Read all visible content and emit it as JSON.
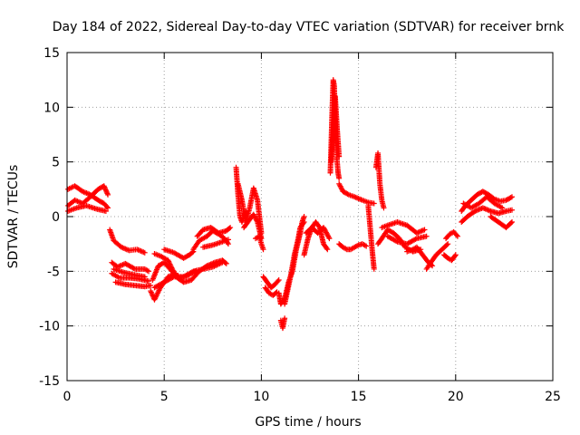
{
  "chart_data": {
    "type": "scatter",
    "title": "Day 184 of 2022, Sidereal Day-to-day VTEC variation (SDTVAR) for receiver brnk",
    "xlabel": "GPS time / hours",
    "ylabel": "SDTVAR / TECUs",
    "xlim": [
      0,
      25
    ],
    "ylim": [
      -15,
      15
    ],
    "xticks": [
      0,
      5,
      10,
      15,
      20,
      25
    ],
    "yticks": [
      -15,
      -10,
      -5,
      0,
      5,
      10,
      15
    ],
    "grid": true,
    "marker": "plus",
    "color": "#ff0000",
    "series": [
      {
        "name": "SDTVAR",
        "tracks": [
          {
            "x": [
              0.05,
              0.4,
              0.8,
              1.2,
              1.6,
              1.9,
              2.1
            ],
            "y": [
              1.0,
              1.5,
              1.2,
              1.8,
              2.5,
              2.8,
              2.0
            ]
          },
          {
            "x": [
              0.05,
              0.4,
              0.8,
              1.2,
              1.6,
              1.9,
              2.1
            ],
            "y": [
              2.5,
              2.8,
              2.3,
              2.0,
              1.5,
              1.2,
              0.8
            ]
          },
          {
            "x": [
              0.05,
              0.5,
              1.0,
              1.5,
              2.0
            ],
            "y": [
              0.5,
              0.8,
              1.0,
              0.7,
              0.5
            ]
          },
          {
            "x": [
              2.2,
              2.4,
              2.8,
              3.2,
              3.6,
              4.0
            ],
            "y": [
              -1.2,
              -2.2,
              -2.8,
              -3.1,
              -3.0,
              -3.3
            ]
          },
          {
            "x": [
              2.3,
              2.6,
              3.0,
              3.5,
              4.0,
              4.2
            ],
            "y": [
              -4.2,
              -4.6,
              -4.3,
              -4.8,
              -4.8,
              -5.0
            ]
          },
          {
            "x": [
              2.3,
              2.7,
              3.2,
              3.7,
              4.2
            ],
            "y": [
              -5.2,
              -5.6,
              -5.6,
              -5.7,
              -5.9
            ]
          },
          {
            "x": [
              2.4,
              2.9,
              3.4,
              4.0
            ],
            "y": [
              -4.8,
              -5.1,
              -5.3,
              -5.5
            ]
          },
          {
            "x": [
              2.5,
              3.0,
              3.5,
              4.0,
              4.3
            ],
            "y": [
              -6.0,
              -6.2,
              -6.3,
              -6.4,
              -6.3
            ]
          },
          {
            "x": [
              4.3,
              4.5,
              4.8,
              5.2,
              5.6
            ],
            "y": [
              -6.8,
              -7.6,
              -6.5,
              -5.5,
              -5.2
            ]
          },
          {
            "x": [
              4.4,
              4.7,
              5.0,
              5.4,
              5.8,
              6.2,
              6.6
            ],
            "y": [
              -5.8,
              -4.5,
              -4.2,
              -5.0,
              -5.6,
              -5.4,
              -5.0
            ]
          },
          {
            "x": [
              4.5,
              5.0,
              5.5,
              6.0,
              6.5,
              7.0,
              7.5,
              8.0
            ],
            "y": [
              -6.5,
              -6.0,
              -5.5,
              -5.5,
              -5.0,
              -4.8,
              -4.6,
              -4.2
            ]
          },
          {
            "x": [
              4.5,
              4.8,
              5.2,
              5.6,
              6.0,
              6.4,
              6.8,
              7.2,
              7.6,
              8.0,
              8.2
            ],
            "y": [
              -3.4,
              -3.6,
              -4.0,
              -5.5,
              -6.0,
              -5.8,
              -5.0,
              -4.5,
              -4.2,
              -4.0,
              -4.3
            ]
          },
          {
            "x": [
              5.0,
              5.5,
              6.0,
              6.3,
              6.5
            ],
            "y": [
              -3.0,
              -3.3,
              -3.8,
              -3.5,
              -3.2
            ]
          },
          {
            "x": [
              6.5,
              6.8,
              7.2,
              7.5,
              7.8,
              8.1,
              8.3
            ],
            "y": [
              -3.0,
              -2.2,
              -1.8,
              -1.3,
              -1.6,
              -2.0,
              -2.5
            ]
          },
          {
            "x": [
              6.7,
              7.0,
              7.4,
              7.8,
              8.2,
              8.4
            ],
            "y": [
              -1.8,
              -1.2,
              -1.0,
              -1.5,
              -1.3,
              -1.0
            ]
          },
          {
            "x": [
              7.0,
              7.5,
              8.0,
              8.3
            ],
            "y": [
              -2.8,
              -2.6,
              -2.3,
              -2.1
            ]
          },
          {
            "x": [
              8.7,
              8.8,
              8.9,
              9.0,
              9.1,
              9.2
            ],
            "y": [
              4.5,
              2.0,
              0.0,
              -0.5,
              0.0,
              0.5
            ]
          },
          {
            "x": [
              8.8,
              9.0,
              9.2,
              9.4,
              9.6,
              9.8,
              10.0
            ],
            "y": [
              3.0,
              1.5,
              -0.5,
              0.8,
              2.6,
              1.5,
              -1.5
            ]
          },
          {
            "x": [
              9.1,
              9.3,
              9.6,
              9.8,
              10.0
            ],
            "y": [
              -1.0,
              -0.5,
              0.2,
              -0.5,
              -2.0
            ]
          },
          {
            "x": [
              9.7,
              9.9,
              10.0,
              10.1
            ],
            "y": [
              -2.0,
              -1.8,
              -2.5,
              -3.0
            ]
          },
          {
            "x": [
              10.1,
              10.3,
              10.5,
              10.7,
              10.9
            ],
            "y": [
              -5.5,
              -6.0,
              -6.5,
              -6.2,
              -5.8
            ]
          },
          {
            "x": [
              10.2,
              10.4,
              10.6,
              10.8
            ],
            "y": [
              -6.5,
              -7.0,
              -7.2,
              -6.9
            ]
          },
          {
            "x": [
              10.9,
              11.0,
              11.2,
              11.4,
              11.6,
              11.8,
              12.0,
              12.1,
              12.2
            ],
            "y": [
              -7.0,
              -8.0,
              -7.5,
              -6.0,
              -5.0,
              -3.0,
              -1.5,
              -0.5,
              0.0
            ]
          },
          {
            "x": [
              11.0,
              11.1,
              11.2
            ],
            "y": [
              -9.5,
              -10.2,
              -9.3
            ]
          },
          {
            "x": [
              11.2,
              11.5,
              11.7,
              11.9,
              12.0,
              12.2
            ],
            "y": [
              -8.0,
              -5.5,
              -3.5,
              -2.0,
              -1.0,
              -0.5
            ]
          },
          {
            "x": [
              12.2,
              12.4,
              12.6,
              12.8,
              13.0,
              13.2,
              13.4
            ],
            "y": [
              -3.5,
              -2.0,
              -1.0,
              -0.5,
              -1.0,
              -2.5,
              -3.0
            ]
          },
          {
            "x": [
              12.3,
              12.6,
              12.9,
              13.2,
              13.5
            ],
            "y": [
              -1.5,
              -1.0,
              -1.5,
              -1.0,
              -2.0
            ]
          },
          {
            "x": [
              13.55,
              13.6,
              13.65,
              13.7,
              13.75,
              13.8,
              13.85,
              13.9,
              13.95,
              14.0
            ],
            "y": [
              4.0,
              7.0,
              10.0,
              12.5,
              12.0,
              9.0,
              6.5,
              5.0,
              4.0,
              3.5
            ]
          },
          {
            "x": [
              13.6,
              13.7,
              13.8,
              13.9,
              14.0
            ],
            "y": [
              5.0,
              8.0,
              11.0,
              8.0,
              5.5
            ]
          },
          {
            "x": [
              14.0,
              14.2,
              14.5,
              14.8,
              15.2,
              15.5,
              15.8
            ],
            "y": [
              3.0,
              2.3,
              2.0,
              1.8,
              1.5,
              1.3,
              1.2
            ]
          },
          {
            "x": [
              14.0,
              14.2,
              14.4,
              14.6,
              14.8,
              15.0,
              15.2,
              15.4
            ],
            "y": [
              -2.5,
              -2.8,
              -3.0,
              -3.0,
              -2.8,
              -2.6,
              -2.5,
              -2.7
            ]
          },
          {
            "x": [
              15.5,
              15.6,
              15.7,
              15.8
            ],
            "y": [
              1.0,
              -1.0,
              -3.0,
              -4.8
            ]
          },
          {
            "x": [
              15.9,
              16.0,
              16.1,
              16.2,
              16.3
            ],
            "y": [
              4.5,
              5.8,
              3.0,
              1.5,
              0.8
            ]
          },
          {
            "x": [
              16.0,
              16.2,
              16.5,
              16.8,
              17.1,
              17.4,
              17.8,
              18.2
            ],
            "y": [
              -2.5,
              -2.0,
              -1.2,
              -1.5,
              -2.0,
              -2.8,
              -3.2,
              -3.0
            ]
          },
          {
            "x": [
              16.2,
              16.5,
              17.0,
              17.5,
              18.0,
              18.4
            ],
            "y": [
              -1.0,
              -0.8,
              -0.5,
              -0.8,
              -1.5,
              -1.2
            ]
          },
          {
            "x": [
              16.5,
              17.0,
              17.5,
              18.0,
              18.5
            ],
            "y": [
              -1.8,
              -2.3,
              -2.5,
              -2.0,
              -1.8
            ]
          },
          {
            "x": [
              17.5,
              17.8,
              18.0,
              18.3,
              18.6,
              18.8
            ],
            "y": [
              -3.2,
              -3.0,
              -2.8,
              -3.5,
              -4.2,
              -4.5
            ]
          },
          {
            "x": [
              18.5,
              18.8,
              19.0,
              19.3,
              19.6
            ],
            "y": [
              -4.8,
              -4.0,
              -3.5,
              -3.0,
              -2.5
            ]
          },
          {
            "x": [
              19.4,
              19.6,
              19.8,
              20.0
            ],
            "y": [
              -3.5,
              -3.8,
              -4.0,
              -3.5
            ]
          },
          {
            "x": [
              19.5,
              19.7,
              19.9,
              20.1
            ],
            "y": [
              -2.0,
              -1.6,
              -1.4,
              -1.8
            ]
          },
          {
            "x": [
              20.3,
              20.5,
              20.8,
              21.1,
              21.4,
              21.7,
              22.0,
              22.3,
              22.6,
              22.9
            ],
            "y": [
              0.5,
              1.0,
              1.5,
              2.0,
              2.3,
              2.0,
              1.6,
              1.4,
              1.5,
              1.8
            ]
          },
          {
            "x": [
              20.3,
              20.6,
              21.0,
              21.4,
              21.8,
              22.2,
              22.6,
              22.9
            ],
            "y": [
              -0.5,
              0.0,
              0.5,
              0.8,
              0.5,
              0.3,
              0.5,
              0.6
            ]
          },
          {
            "x": [
              20.4,
              20.8,
              21.2,
              21.6,
              22.0,
              22.4
            ],
            "y": [
              1.2,
              0.8,
              1.2,
              1.8,
              1.2,
              0.8
            ]
          },
          {
            "x": [
              21.8,
              22.2,
              22.6,
              22.9
            ],
            "y": [
              0.0,
              -0.5,
              -1.0,
              -0.5
            ]
          }
        ]
      }
    ]
  }
}
